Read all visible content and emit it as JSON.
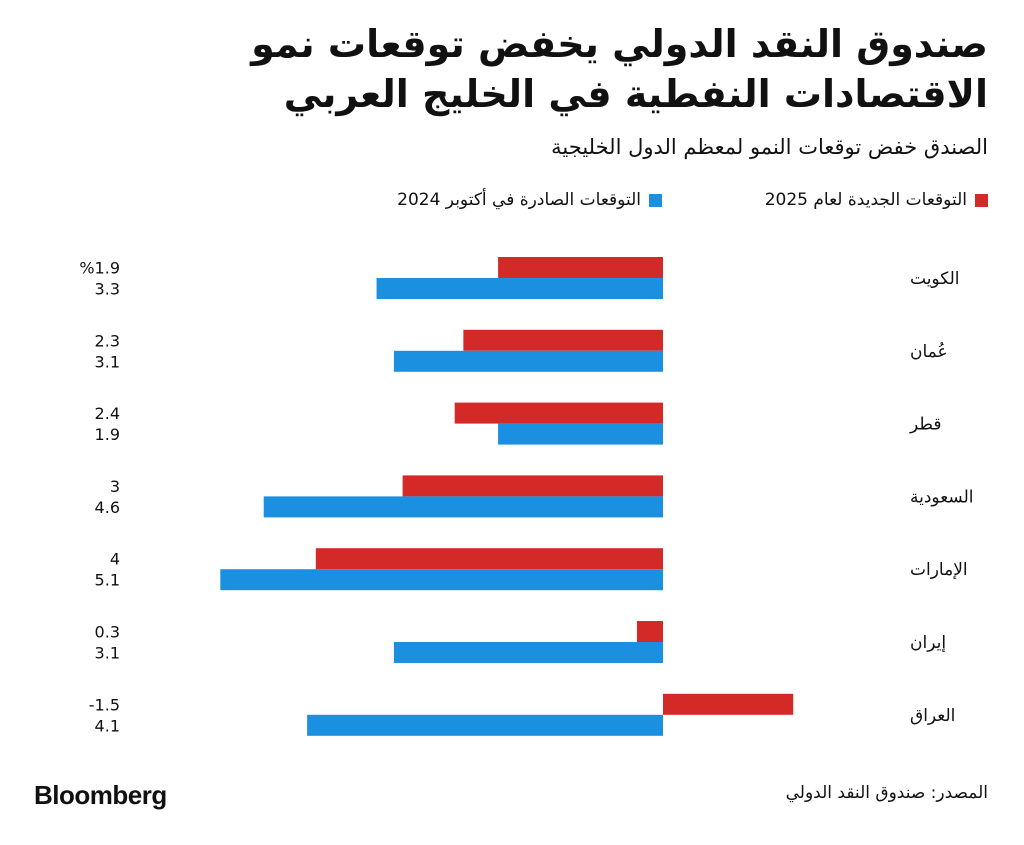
{
  "header": {
    "title_line1": "صندوق النقد الدولي يخفض توقعات نمو",
    "title_line2": "الاقتصادات النفطية في الخليج العربي",
    "subtitle": "الصندق خفض توقعات النمو لمعظم الدول الخليجية"
  },
  "legend": {
    "new_label": "التوقعات الجديدة لعام 2025",
    "old_label": "التوقعات الصادرة في أكتوبر 2024"
  },
  "colors": {
    "new": "#d42a27",
    "old": "#1b8fe0",
    "text": "#111111"
  },
  "footer": {
    "source": "المصدر: صندوق النقد الدولي",
    "brand": "Bloomberg"
  },
  "chart_data": {
    "type": "bar",
    "orientation": "horizontal",
    "categories": [
      "الكويت",
      "عُمان",
      "قطر",
      "السعودية",
      "الإمارات",
      "إيران",
      "العراق"
    ],
    "series": [
      {
        "name": "التوقعات الجديدة لعام 2025",
        "color": "#d42a27",
        "values": [
          1.9,
          2.3,
          2.4,
          3,
          4,
          0.3,
          -1.5
        ]
      },
      {
        "name": "التوقعات الصادرة في أكتوبر 2024",
        "color": "#1b8fe0",
        "values": [
          3.3,
          3.1,
          1.9,
          4.6,
          5.1,
          3.1,
          4.1
        ]
      }
    ],
    "value_labels": {
      "new": [
        "%1.9",
        "2.3",
        "2.4",
        "3",
        "4",
        "0.3",
        "-1.5"
      ],
      "old": [
        "3.3",
        "3.1",
        "1.9",
        "4.6",
        "5.1",
        "3.1",
        "4.1"
      ]
    },
    "grid": false,
    "legend_position": "top"
  }
}
